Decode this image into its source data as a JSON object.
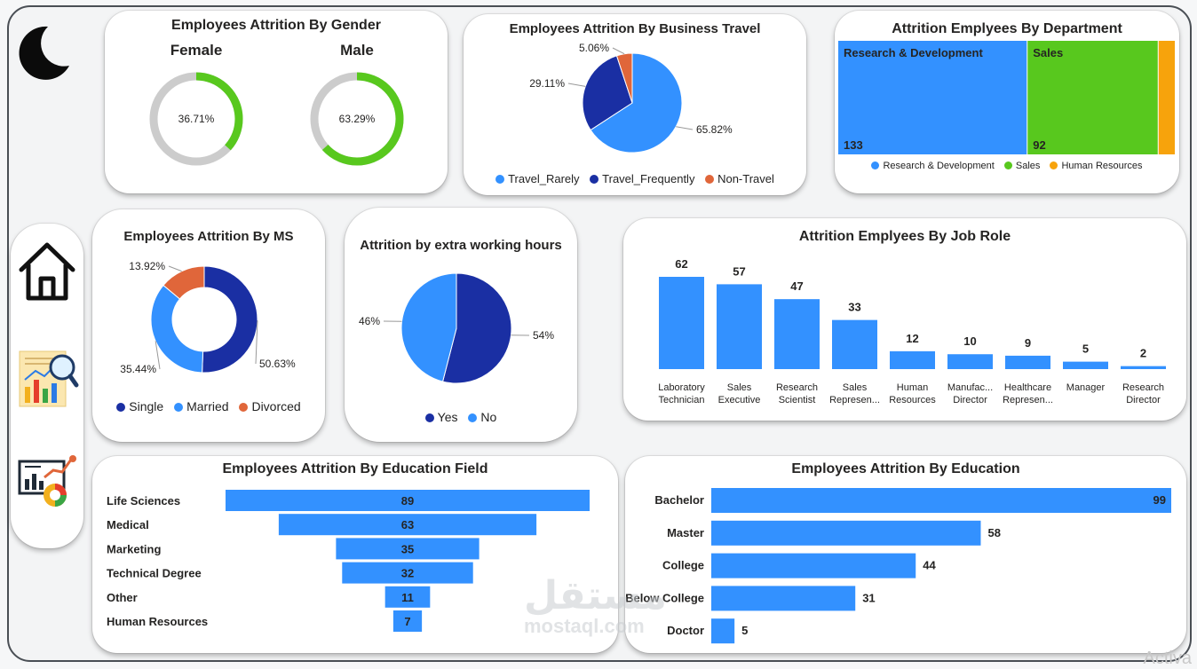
{
  "nav": {
    "theme_icon": "moon-icon",
    "items": [
      {
        "name": "home",
        "icon": "home-icon"
      },
      {
        "name": "report",
        "icon": "report-analytics-icon"
      },
      {
        "name": "dashboard",
        "icon": "dashboard-analytics-icon"
      }
    ]
  },
  "colors": {
    "light_blue": "#3391ff",
    "dark_blue": "#1a2fa3",
    "orange": "#e0663a",
    "green": "#58c81e",
    "amber": "#f7a30c",
    "grey_track": "#cccccc"
  },
  "watermark": {
    "arabic": "مستقل",
    "latin": "mostaql.com"
  },
  "os_overlay": "Activa",
  "chart_data": [
    {
      "id": "gender",
      "type": "gauge",
      "title": "Employees Attrition By Gender",
      "series": [
        {
          "name": "Female",
          "value": 36.71,
          "label": "36.71%"
        },
        {
          "name": "Male",
          "value": 63.29,
          "label": "63.29%"
        }
      ]
    },
    {
      "id": "travel",
      "type": "pie",
      "title": "Employees Attrition By Business Travel",
      "slices": [
        {
          "name": "Travel_Rarely",
          "value": 65.82,
          "label": "65.82%",
          "color": "#3391ff"
        },
        {
          "name": "Travel_Frequently",
          "value": 29.11,
          "label": "29.11%",
          "color": "#1a2fa3"
        },
        {
          "name": "Non-Travel",
          "value": 5.06,
          "label": "5.06%",
          "color": "#e0663a"
        }
      ]
    },
    {
      "id": "department",
      "type": "treemap",
      "title": "Attrition Emplyees By Department",
      "items": [
        {
          "name": "Research & Development",
          "value": 133,
          "color": "#3391ff"
        },
        {
          "name": "Sales",
          "value": 92,
          "color": "#58c81e"
        },
        {
          "name": "Human Resources",
          "value": 12,
          "color": "#f7a30c"
        }
      ]
    },
    {
      "id": "marital",
      "type": "donut",
      "title": "Employees Attrition By MS",
      "slices": [
        {
          "name": "Single",
          "value": 50.63,
          "label": "50.63%",
          "color": "#1a2fa3"
        },
        {
          "name": "Married",
          "value": 35.44,
          "label": "35.44%",
          "color": "#3391ff"
        },
        {
          "name": "Divorced",
          "value": 13.92,
          "label": "13.92%",
          "color": "#e0663a"
        }
      ]
    },
    {
      "id": "overtime",
      "type": "pie",
      "title": "Attrition by extra working hours",
      "slices": [
        {
          "name": "Yes",
          "value": 54,
          "label": "54%",
          "color": "#1a2fa3"
        },
        {
          "name": "No",
          "value": 46,
          "label": "46%",
          "color": "#3391ff"
        }
      ]
    },
    {
      "id": "jobrole",
      "type": "bar",
      "title": "Attrition Emplyees By Job Role",
      "categories": [
        [
          "Laboratory",
          "Technician"
        ],
        [
          "Sales",
          "Executive"
        ],
        [
          "Research",
          "Scientist"
        ],
        [
          "Sales",
          "Represen..."
        ],
        [
          "Human",
          "Resources"
        ],
        [
          "Manufac...",
          "Director"
        ],
        [
          "Healthcare",
          "Represen..."
        ],
        [
          "Manager"
        ],
        [
          "Research",
          "Director"
        ]
      ],
      "values": [
        62,
        57,
        47,
        33,
        12,
        10,
        9,
        5,
        2
      ]
    },
    {
      "id": "edufield",
      "type": "funnel",
      "title": "Employees Attrition By Education Field",
      "categories": [
        "Life Sciences",
        "Medical",
        "Marketing",
        "Technical Degree",
        "Other",
        "Human Resources"
      ],
      "values": [
        89,
        63,
        35,
        32,
        11,
        7
      ]
    },
    {
      "id": "education",
      "type": "hbar",
      "title": "Employees Attrition By Education",
      "categories": [
        "Bachelor",
        "Master",
        "College",
        "Below College",
        "Doctor"
      ],
      "values": [
        99,
        58,
        44,
        31,
        5
      ]
    }
  ]
}
